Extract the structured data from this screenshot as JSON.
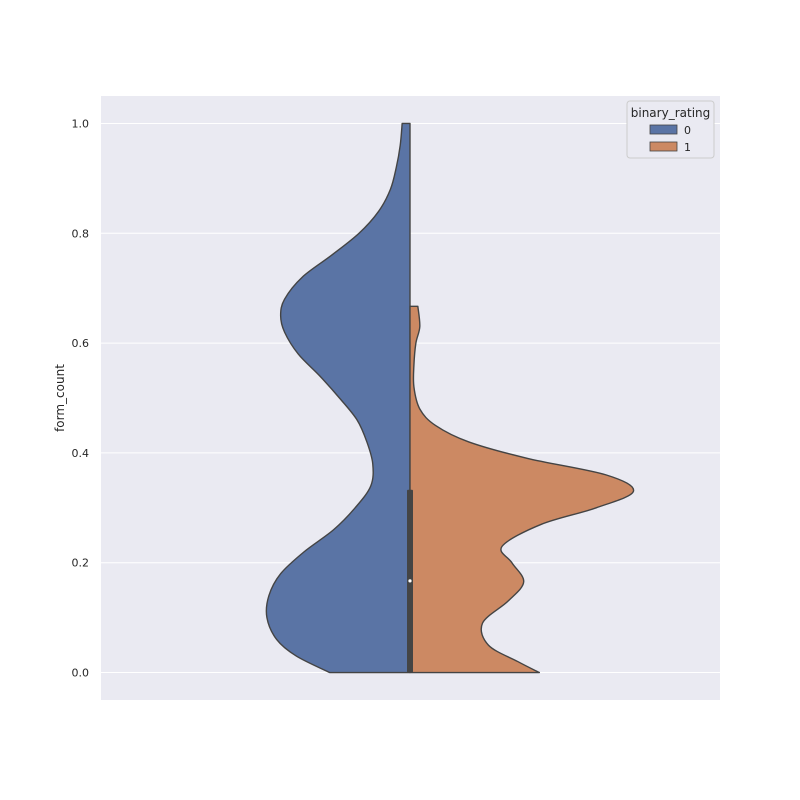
{
  "chart_data": {
    "type": "violin",
    "split": true,
    "ylabel": "form_count",
    "ylim": [
      -0.05,
      1.05
    ],
    "yticks": [
      0.0,
      0.2,
      0.4,
      0.6,
      0.8,
      1.0
    ],
    "ytick_labels": [
      "0.0",
      "0.2",
      "0.4",
      "0.6",
      "0.8",
      "1.0"
    ],
    "grid": true,
    "legend": {
      "title": "binary_rating",
      "placement": "top-right",
      "entries": [
        "0",
        "1"
      ]
    },
    "series": [
      {
        "name": "0",
        "color": "#5a74a5",
        "side": "left",
        "range": [
          0.0,
          1.0
        ],
        "density_profile": [
          [
            0.0,
            0.41
          ],
          [
            0.03,
            0.58
          ],
          [
            0.06,
            0.68
          ],
          [
            0.1,
            0.73
          ],
          [
            0.14,
            0.72
          ],
          [
            0.18,
            0.66
          ],
          [
            0.22,
            0.54
          ],
          [
            0.26,
            0.39
          ],
          [
            0.3,
            0.28
          ],
          [
            0.34,
            0.2
          ],
          [
            0.38,
            0.19
          ],
          [
            0.42,
            0.22
          ],
          [
            0.46,
            0.27
          ],
          [
            0.5,
            0.36
          ],
          [
            0.54,
            0.46
          ],
          [
            0.58,
            0.57
          ],
          [
            0.62,
            0.64
          ],
          [
            0.65,
            0.66
          ],
          [
            0.68,
            0.64
          ],
          [
            0.72,
            0.55
          ],
          [
            0.76,
            0.4
          ],
          [
            0.8,
            0.26
          ],
          [
            0.84,
            0.16
          ],
          [
            0.88,
            0.1
          ],
          [
            0.92,
            0.07
          ],
          [
            0.96,
            0.05
          ],
          [
            1.0,
            0.04
          ]
        ]
      },
      {
        "name": "1",
        "color": "#cc8963",
        "side": "right",
        "range": [
          0.0,
          0.667
        ],
        "density_profile": [
          [
            0.0,
            0.66
          ],
          [
            0.02,
            0.55
          ],
          [
            0.05,
            0.4
          ],
          [
            0.09,
            0.37
          ],
          [
            0.13,
            0.5
          ],
          [
            0.165,
            0.58
          ],
          [
            0.2,
            0.52
          ],
          [
            0.23,
            0.47
          ],
          [
            0.27,
            0.67
          ],
          [
            0.3,
            0.95
          ],
          [
            0.33,
            1.14
          ],
          [
            0.36,
            1.0
          ],
          [
            0.39,
            0.6
          ],
          [
            0.42,
            0.3
          ],
          [
            0.45,
            0.13
          ],
          [
            0.48,
            0.05
          ],
          [
            0.52,
            0.02
          ],
          [
            0.56,
            0.02
          ],
          [
            0.6,
            0.03
          ],
          [
            0.63,
            0.05
          ],
          [
            0.667,
            0.04
          ]
        ]
      }
    ],
    "inner_box": {
      "q1": 0.0,
      "median": 0.167,
      "q3": 0.333,
      "whisker_low": 0.0,
      "whisker_high": 0.333
    }
  }
}
